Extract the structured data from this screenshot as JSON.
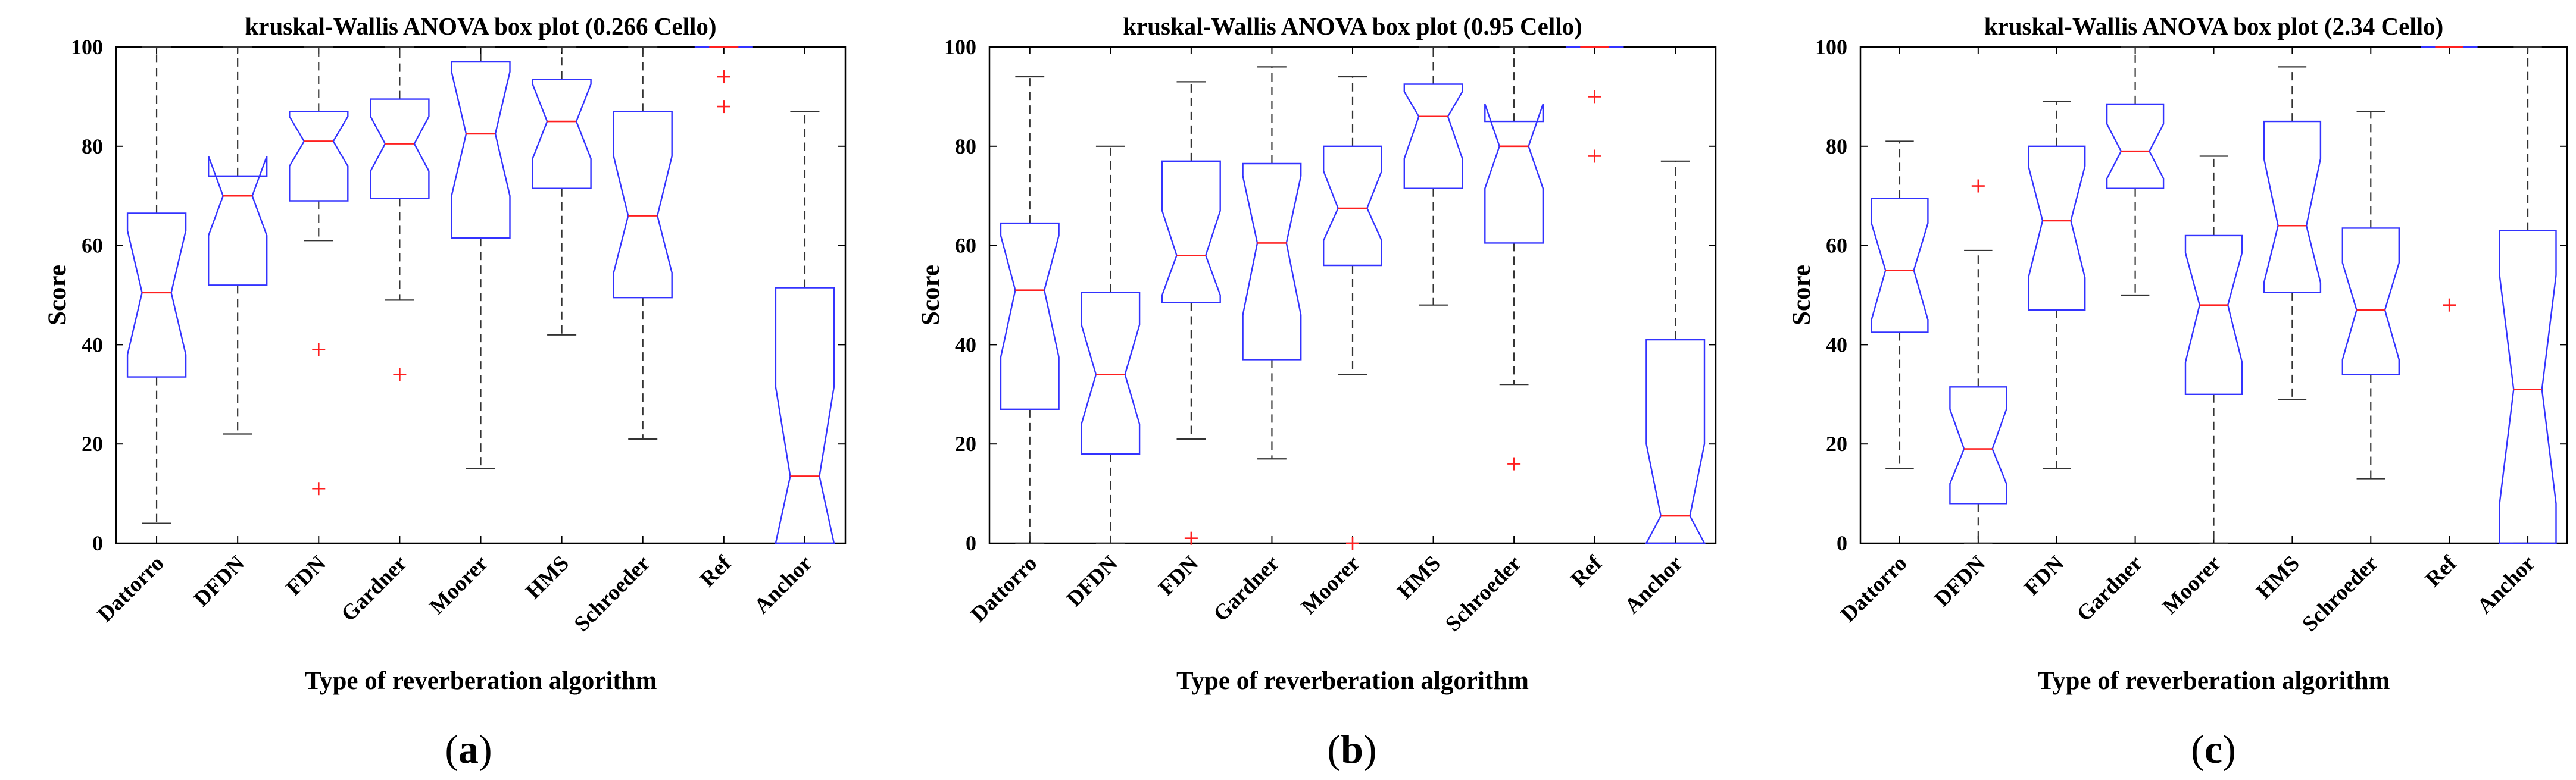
{
  "chart_data": [
    {
      "type": "boxplot",
      "panel_label": "a",
      "title": "kruskal-Wallis ANOVA box plot (0.266 Cello)",
      "xlabel": "Type of reverberation algorithm",
      "ylabel": "Score",
      "ylim": [
        0,
        100
      ],
      "yticks": [
        0,
        20,
        40,
        60,
        80,
        100
      ],
      "categories": [
        "Dattorro",
        "DFDN",
        "FDN",
        "Gardner",
        "Moorer",
        "HMS",
        "Schroeder",
        "Ref",
        "Anchor"
      ],
      "boxes": [
        {
          "whisker_low": 4,
          "q1": 33.5,
          "median": 50.5,
          "q3": 66.5,
          "whisker_high": 100,
          "notch_low": 38,
          "notch_high": 63,
          "outliers": []
        },
        {
          "whisker_low": 22,
          "q1": 52,
          "median": 70,
          "q3": 74,
          "whisker_high": 100,
          "notch_low": 62,
          "notch_high": 78,
          "outliers": []
        },
        {
          "whisker_low": 61,
          "q1": 69,
          "median": 81,
          "q3": 87,
          "whisker_high": 100,
          "notch_low": 76,
          "notch_high": 86,
          "outliers": [
            39,
            11
          ]
        },
        {
          "whisker_low": 49,
          "q1": 69.5,
          "median": 80.5,
          "q3": 89.5,
          "whisker_high": 100,
          "notch_low": 75,
          "notch_high": 86,
          "outliers": [
            34
          ]
        },
        {
          "whisker_low": 15,
          "q1": 61.5,
          "median": 82.5,
          "q3": 97,
          "whisker_high": 100,
          "notch_low": 70,
          "notch_high": 95,
          "outliers": []
        },
        {
          "whisker_low": 42,
          "q1": 71.5,
          "median": 85,
          "q3": 93.5,
          "whisker_high": 100,
          "notch_low": 77.5,
          "notch_high": 92.5,
          "outliers": []
        },
        {
          "whisker_low": 21,
          "q1": 49.5,
          "median": 66,
          "q3": 87,
          "whisker_high": 100,
          "notch_low": 54.5,
          "notch_high": 78,
          "outliers": []
        },
        {
          "whisker_low": 100,
          "q1": 100,
          "median": 100,
          "q3": 100,
          "whisker_high": 100,
          "notch_low": 100,
          "notch_high": 100,
          "outliers": [
            94,
            88
          ]
        },
        {
          "whisker_low": 0,
          "q1": 0,
          "median": 13.5,
          "q3": 51.5,
          "whisker_high": 87,
          "notch_low": 0,
          "notch_high": 31.5,
          "outliers": []
        }
      ]
    },
    {
      "type": "boxplot",
      "panel_label": "b",
      "title": "kruskal-Wallis ANOVA box plot (0.95 Cello)",
      "xlabel": "Type of reverberation algorithm",
      "ylabel": "Score",
      "ylim": [
        0,
        100
      ],
      "yticks": [
        0,
        20,
        40,
        60,
        80,
        100
      ],
      "categories": [
        "Dattorro",
        "DFDN",
        "FDN",
        "Gardner",
        "Moorer",
        "HMS",
        "Schroeder",
        "Ref",
        "Anchor"
      ],
      "boxes": [
        {
          "whisker_low": 0,
          "q1": 27,
          "median": 51,
          "q3": 64.5,
          "whisker_high": 94,
          "notch_low": 37.5,
          "notch_high": 62,
          "outliers": []
        },
        {
          "whisker_low": 0,
          "q1": 18,
          "median": 34,
          "q3": 50.5,
          "whisker_high": 80,
          "notch_low": 24,
          "notch_high": 44,
          "outliers": []
        },
        {
          "whisker_low": 21,
          "q1": 48.5,
          "median": 58,
          "q3": 77,
          "whisker_high": 93,
          "notch_low": 50,
          "notch_high": 67,
          "outliers": [
            1
          ]
        },
        {
          "whisker_low": 17,
          "q1": 37,
          "median": 60.5,
          "q3": 76.5,
          "whisker_high": 96,
          "notch_low": 46,
          "notch_high": 74,
          "outliers": []
        },
        {
          "whisker_low": 34,
          "q1": 56,
          "median": 67.5,
          "q3": 80,
          "whisker_high": 94,
          "notch_low": 61,
          "notch_high": 75,
          "outliers": [
            0
          ]
        },
        {
          "whisker_low": 48,
          "q1": 71.5,
          "median": 86,
          "q3": 92.5,
          "whisker_high": 100,
          "notch_low": 77.5,
          "notch_high": 91,
          "outliers": []
        },
        {
          "whisker_low": 32,
          "q1": 60.5,
          "median": 80,
          "q3": 85,
          "whisker_high": 100,
          "notch_low": 71.5,
          "notch_high": 88.5,
          "outliers": [
            16
          ]
        },
        {
          "whisker_low": 100,
          "q1": 100,
          "median": 100,
          "q3": 100,
          "whisker_high": 100,
          "notch_low": 100,
          "notch_high": 100,
          "outliers": [
            90,
            78
          ]
        },
        {
          "whisker_low": 0,
          "q1": 0,
          "median": 5.5,
          "q3": 41,
          "whisker_high": 77,
          "notch_low": 0,
          "notch_high": 20,
          "outliers": []
        }
      ]
    },
    {
      "type": "boxplot",
      "panel_label": "c",
      "title": "kruskal-Wallis ANOVA box plot (2.34 Cello)",
      "xlabel": "Type of reverberation algorithm",
      "ylabel": "Score",
      "ylim": [
        0,
        100
      ],
      "yticks": [
        0,
        20,
        40,
        60,
        80,
        100
      ],
      "categories": [
        "Dattorro",
        "DFDN",
        "FDN",
        "Gardner",
        "Moorer",
        "HMS",
        "Schroeder",
        "Ref",
        "Anchor"
      ],
      "boxes": [
        {
          "whisker_low": 15,
          "q1": 42.5,
          "median": 55,
          "q3": 69.5,
          "whisker_high": 81,
          "notch_low": 45,
          "notch_high": 64.5,
          "outliers": []
        },
        {
          "whisker_low": 0,
          "q1": 8,
          "median": 19,
          "q3": 31.5,
          "whisker_high": 59,
          "notch_low": 12,
          "notch_high": 27,
          "outliers": [
            72
          ]
        },
        {
          "whisker_low": 15,
          "q1": 47,
          "median": 65,
          "q3": 80,
          "whisker_high": 89,
          "notch_low": 53.5,
          "notch_high": 76,
          "outliers": []
        },
        {
          "whisker_low": 50,
          "q1": 71.5,
          "median": 79,
          "q3": 88.5,
          "whisker_high": 100,
          "notch_low": 73.5,
          "notch_high": 84.5,
          "outliers": []
        },
        {
          "whisker_low": 0,
          "q1": 30,
          "median": 48,
          "q3": 62,
          "whisker_high": 78,
          "notch_low": 36.5,
          "notch_high": 58.5,
          "outliers": []
        },
        {
          "whisker_low": 29,
          "q1": 50.5,
          "median": 64,
          "q3": 85,
          "whisker_high": 96,
          "notch_low": 52.5,
          "notch_high": 77.5,
          "outliers": []
        },
        {
          "whisker_low": 13,
          "q1": 34,
          "median": 47,
          "q3": 63.5,
          "whisker_high": 87,
          "notch_low": 37,
          "notch_high": 56.5,
          "outliers": []
        },
        {
          "whisker_low": 100,
          "q1": 100,
          "median": 100,
          "q3": 100,
          "whisker_high": 100,
          "notch_low": 100,
          "notch_high": 100,
          "outliers": [
            48
          ]
        },
        {
          "whisker_low": 0,
          "q1": 0,
          "median": 31,
          "q3": 63,
          "whisker_high": 100,
          "notch_low": 8,
          "notch_high": 54,
          "outliers": []
        }
      ]
    }
  ],
  "colors": {
    "box": "#3333ff",
    "median": "#ff2020",
    "whisker": "#333333",
    "outlier": "#ff2020",
    "axes": "#000000"
  }
}
